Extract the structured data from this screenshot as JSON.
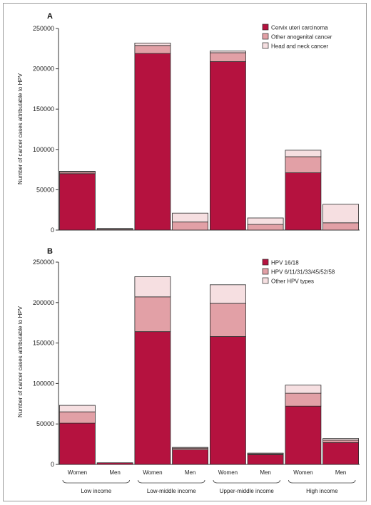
{
  "colors": {
    "dark": "#b5123f",
    "mid": "#e2a0a6",
    "light": "#f6dfe1",
    "stroke": "#2a2a2a"
  },
  "chart_data": [
    {
      "type": "bar",
      "stacked": true,
      "panel_label": "A",
      "ylabel": "Number of cancer cases attributable to HPV",
      "ylim": [
        0,
        250000
      ],
      "yticks": [
        0,
        50000,
        100000,
        150000,
        200000,
        250000
      ],
      "legend_position": "top-right",
      "categories": [
        "Women",
        "Men",
        "Women",
        "Men",
        "Women",
        "Men",
        "Women",
        "Men"
      ],
      "groups": [
        "Low income",
        "Low-middle income",
        "Upper-middle income",
        "High income"
      ],
      "series": [
        {
          "name": "Cervix uteri carcinoma",
          "values": [
            70000,
            0,
            219000,
            0,
            209000,
            0,
            71000,
            0
          ]
        },
        {
          "name": "Other anogenital cancer",
          "values": [
            2000,
            1000,
            10000,
            10000,
            11000,
            7000,
            20000,
            9000
          ]
        },
        {
          "name": "Head and neck cancer",
          "values": [
            1000,
            1000,
            3000,
            11000,
            2000,
            8000,
            8000,
            23000
          ]
        }
      ]
    },
    {
      "type": "bar",
      "stacked": true,
      "panel_label": "B",
      "ylabel": "Number of cancer cases attributable to HPV",
      "ylim": [
        0,
        250000
      ],
      "yticks": [
        0,
        50000,
        100000,
        150000,
        200000,
        250000
      ],
      "legend_position": "top-right",
      "categories": [
        "Women",
        "Men",
        "Women",
        "Men",
        "Women",
        "Men",
        "Women",
        "Men"
      ],
      "groups": [
        "Low income",
        "Low-middle income",
        "Upper-middle income",
        "High income"
      ],
      "series": [
        {
          "name": "HPV 16/18",
          "values": [
            51000,
            2000,
            164000,
            18000,
            158000,
            12000,
            72000,
            27000
          ]
        },
        {
          "name": "HPV 6/11/31/33/45/52/58",
          "values": [
            14000,
            0,
            43000,
            2000,
            41000,
            1000,
            16000,
            3000
          ]
        },
        {
          "name": "Other HPV types",
          "values": [
            8000,
            0,
            25000,
            1000,
            23000,
            1000,
            10000,
            2000
          ]
        }
      ]
    }
  ]
}
